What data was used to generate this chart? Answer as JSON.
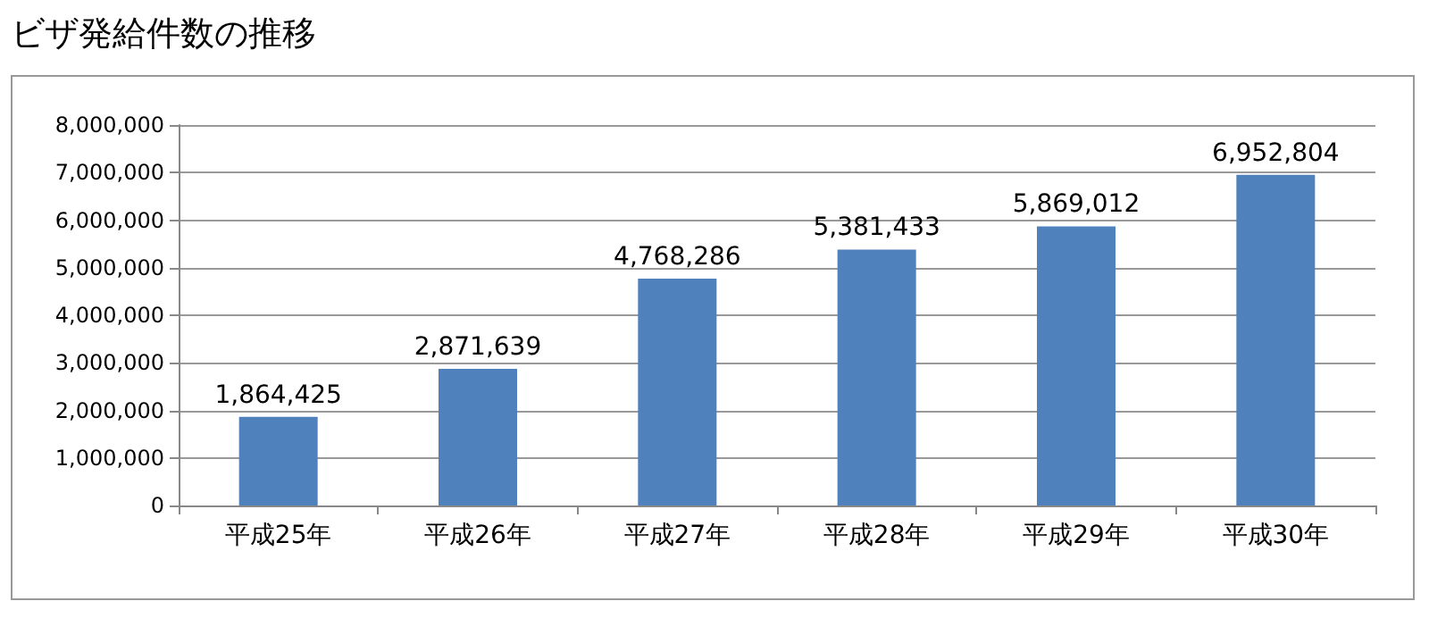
{
  "chart_data": {
    "type": "bar",
    "title": "ビザ発給件数の推移",
    "categories": [
      "平成25年",
      "平成26年",
      "平成27年",
      "平成28年",
      "平成29年",
      "平成30年"
    ],
    "values": [
      1864425,
      2871639,
      4768286,
      5381433,
      5869012,
      6952804
    ],
    "value_labels": [
      "1,864,425",
      "2,871,639",
      "4,768,286",
      "5,381,433",
      "5,869,012",
      "6,952,804"
    ],
    "color": "#4f81bd",
    "ylim": [
      0,
      8000000
    ],
    "yticks": [
      0,
      {
        "value": 1000000,
        "label": "1,000,000"
      },
      {
        "value": 2000000,
        "label": "2,000,000"
      },
      {
        "value": 3000000,
        "label": "3,000,000"
      },
      {
        "value": 4000000,
        "label": "4,000,000"
      },
      {
        "value": 5000000,
        "label": "5,000,000"
      },
      {
        "value": 6000000,
        "label": "6,000,000"
      },
      {
        "value": 7000000,
        "label": "7,000,000"
      },
      {
        "value": 8000000,
        "label": "8,000,000"
      }
    ],
    "grid": "y"
  }
}
